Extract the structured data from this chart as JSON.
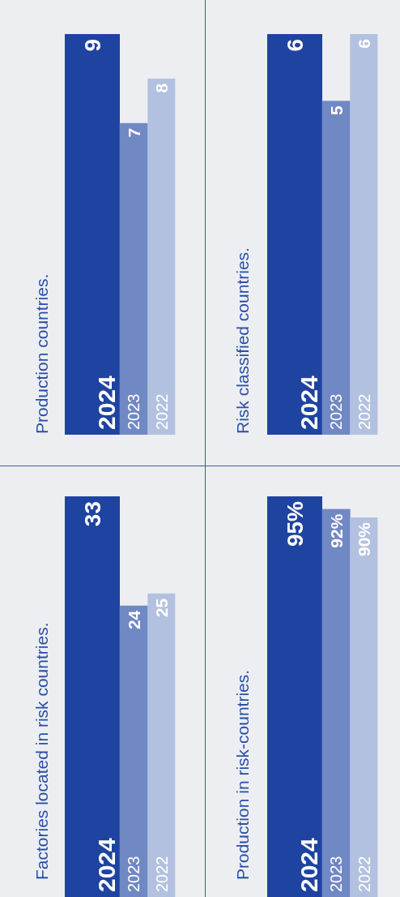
{
  "chart_data": [
    {
      "type": "bar",
      "title": "Factories located in risk countries.",
      "categories": [
        "2024",
        "2023",
        "2022"
      ],
      "values": [
        33,
        24,
        25
      ],
      "colors": [
        "#1f43a0",
        "#7088c4",
        "#b3c1e0"
      ],
      "data_labels": true
    },
    {
      "type": "bar",
      "title": "Production countries.",
      "categories": [
        "2024",
        "2023",
        "2022"
      ],
      "values": [
        9,
        7,
        8
      ],
      "colors": [
        "#1f43a0",
        "#7088c4",
        "#b3c1e0"
      ],
      "data_labels": true
    },
    {
      "type": "bar",
      "title": "Production in risk-countries.",
      "categories": [
        "2024",
        "2023",
        "2022"
      ],
      "values": [
        95,
        92,
        90
      ],
      "value_labels": [
        "95%",
        "92%",
        "90%"
      ],
      "colors": [
        "#1f43a0",
        "#7088c4",
        "#b3c1e0"
      ]
    },
    {
      "type": "bar",
      "title": "Risk classified countries.",
      "categories": [
        "2024",
        "2023",
        "2022"
      ],
      "values": [
        6,
        5,
        6
      ],
      "colors": [
        "#1f43a0",
        "#7088c4",
        "#b3c1e0"
      ],
      "data_labels": true
    }
  ]
}
